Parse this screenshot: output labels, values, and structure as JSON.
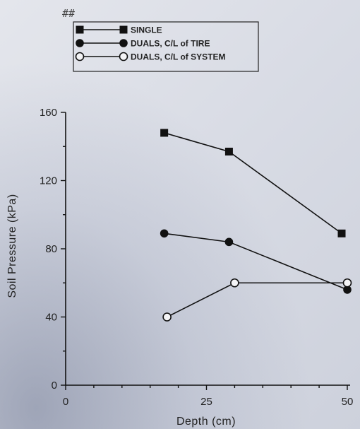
{
  "chart_data": {
    "type": "line",
    "xlabel": "Depth (cm)",
    "ylabel": "Soil Pressure (kPa)",
    "xlim": [
      0,
      50
    ],
    "ylim": [
      0,
      160
    ],
    "x_ticks": [
      "0",
      "25",
      "50"
    ],
    "y_ticks": [
      "0",
      "40",
      "80",
      "120",
      "160"
    ],
    "corner_mark": "##",
    "legend_position": "top",
    "series": [
      {
        "name": "SINGLE",
        "marker": "filled-square",
        "color": "#111111",
        "x": [
          17.5,
          29,
          49
        ],
        "y": [
          148,
          137,
          89
        ]
      },
      {
        "name": "DUALS, C/L of TIRE",
        "marker": "filled-circle",
        "color": "#111111",
        "x": [
          17.5,
          29,
          50
        ],
        "y": [
          89,
          84,
          56
        ]
      },
      {
        "name": "DUALS, C/L of SYSTEM",
        "marker": "open-circle",
        "color": "#111111",
        "x": [
          18,
          30,
          50
        ],
        "y": [
          40,
          60,
          60
        ]
      }
    ]
  }
}
